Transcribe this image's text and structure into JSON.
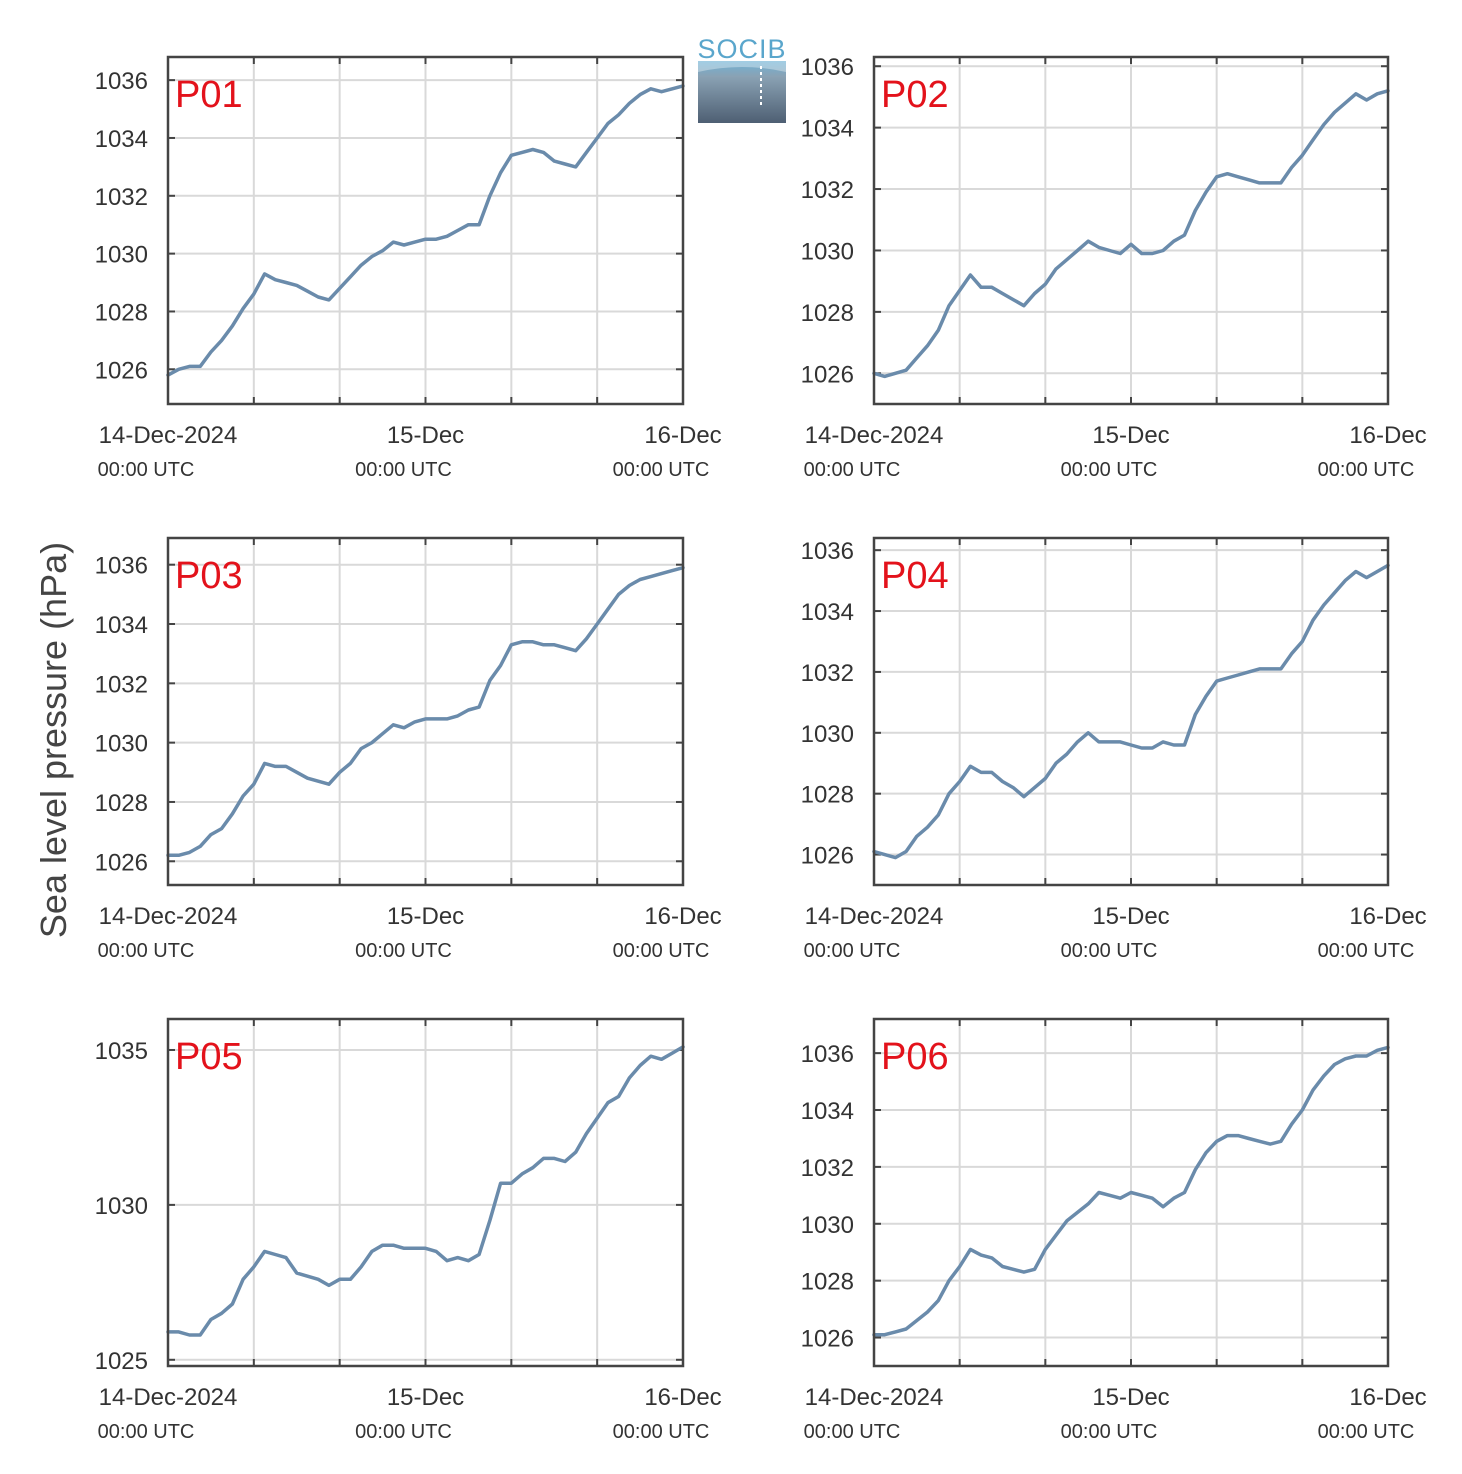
{
  "logo": {
    "text": "SOCIB"
  },
  "colors": {
    "line": "#6a8bab",
    "grid": "#d9d9d9",
    "frame": "#444444",
    "panel_label": "#e3121b"
  },
  "ylabel": "Sea level pressure (hPa)",
  "x_ticks": [
    {
      "label": "14-Dec-2024",
      "sub": "00:00 UTC"
    },
    {
      "label": "15-Dec",
      "sub": "00:00 UTC"
    },
    {
      "label": "16-Dec",
      "sub": "00:00 UTC"
    }
  ],
  "chart_data": [
    {
      "type": "line",
      "name": "P01",
      "x_unit": "hours since 14-Dec-2024 00:00 UTC",
      "xlim": [
        0,
        48
      ],
      "ylim": [
        1024.8,
        1036.8
      ],
      "yticks": [
        1026,
        1028,
        1030,
        1032,
        1034,
        1036
      ],
      "x": [
        0,
        1,
        2,
        3,
        4,
        5,
        6,
        7,
        8,
        9,
        10,
        11,
        12,
        13,
        14,
        15,
        16,
        17,
        18,
        19,
        20,
        21,
        22,
        23,
        24,
        25,
        26,
        27,
        28,
        29,
        30,
        31,
        32,
        33,
        34,
        35,
        36,
        37,
        38,
        39,
        40,
        41,
        42,
        43,
        44,
        45,
        46,
        47,
        48
      ],
      "y": [
        1025.8,
        1026.0,
        1026.1,
        1026.1,
        1026.6,
        1027.0,
        1027.5,
        1028.1,
        1028.6,
        1029.3,
        1029.1,
        1029.0,
        1028.9,
        1028.7,
        1028.5,
        1028.4,
        1028.8,
        1029.2,
        1029.6,
        1029.9,
        1030.1,
        1030.4,
        1030.3,
        1030.4,
        1030.5,
        1030.5,
        1030.6,
        1030.8,
        1031.0,
        1031.0,
        1032.0,
        1032.8,
        1033.4,
        1033.5,
        1033.6,
        1033.5,
        1033.2,
        1033.1,
        1033.0,
        1033.5,
        1034.0,
        1034.5,
        1034.8,
        1035.2,
        1035.5,
        1035.7,
        1035.6,
        1035.7,
        1035.8
      ]
    },
    {
      "type": "line",
      "name": "P02",
      "x_unit": "hours since 14-Dec-2024 00:00 UTC",
      "xlim": [
        0,
        48
      ],
      "ylim": [
        1025.0,
        1036.3
      ],
      "yticks": [
        1026,
        1028,
        1030,
        1032,
        1034,
        1036
      ],
      "x": [
        0,
        1,
        2,
        3,
        4,
        5,
        6,
        7,
        8,
        9,
        10,
        11,
        12,
        13,
        14,
        15,
        16,
        17,
        18,
        19,
        20,
        21,
        22,
        23,
        24,
        25,
        26,
        27,
        28,
        29,
        30,
        31,
        32,
        33,
        34,
        35,
        36,
        37,
        38,
        39,
        40,
        41,
        42,
        43,
        44,
        45,
        46,
        47,
        48
      ],
      "y": [
        1026.0,
        1025.9,
        1026.0,
        1026.1,
        1026.5,
        1026.9,
        1027.4,
        1028.2,
        1028.7,
        1029.2,
        1028.8,
        1028.8,
        1028.6,
        1028.4,
        1028.2,
        1028.6,
        1028.9,
        1029.4,
        1029.7,
        1030.0,
        1030.3,
        1030.1,
        1030.0,
        1029.9,
        1030.2,
        1029.9,
        1029.9,
        1030.0,
        1030.3,
        1030.5,
        1031.3,
        1031.9,
        1032.4,
        1032.5,
        1032.4,
        1032.3,
        1032.2,
        1032.2,
        1032.2,
        1032.7,
        1033.1,
        1033.6,
        1034.1,
        1034.5,
        1034.8,
        1035.1,
        1034.9,
        1035.1,
        1035.2
      ]
    },
    {
      "type": "line",
      "name": "P03",
      "x_unit": "hours since 14-Dec-2024 00:00 UTC",
      "xlim": [
        0,
        48
      ],
      "ylim": [
        1025.2,
        1036.9
      ],
      "yticks": [
        1026,
        1028,
        1030,
        1032,
        1034,
        1036
      ],
      "x": [
        0,
        1,
        2,
        3,
        4,
        5,
        6,
        7,
        8,
        9,
        10,
        11,
        12,
        13,
        14,
        15,
        16,
        17,
        18,
        19,
        20,
        21,
        22,
        23,
        24,
        25,
        26,
        27,
        28,
        29,
        30,
        31,
        32,
        33,
        34,
        35,
        36,
        37,
        38,
        39,
        40,
        41,
        42,
        43,
        44,
        45,
        46,
        47,
        48
      ],
      "y": [
        1026.2,
        1026.2,
        1026.3,
        1026.5,
        1026.9,
        1027.1,
        1027.6,
        1028.2,
        1028.6,
        1029.3,
        1029.2,
        1029.2,
        1029.0,
        1028.8,
        1028.7,
        1028.6,
        1029.0,
        1029.3,
        1029.8,
        1030.0,
        1030.3,
        1030.6,
        1030.5,
        1030.7,
        1030.8,
        1030.8,
        1030.8,
        1030.9,
        1031.1,
        1031.2,
        1032.1,
        1032.6,
        1033.3,
        1033.4,
        1033.4,
        1033.3,
        1033.3,
        1033.2,
        1033.1,
        1033.5,
        1034.0,
        1034.5,
        1035.0,
        1035.3,
        1035.5,
        1035.6,
        1035.7,
        1035.8,
        1035.9
      ]
    },
    {
      "type": "line",
      "name": "P04",
      "x_unit": "hours since 14-Dec-2024 00:00 UTC",
      "xlim": [
        0,
        48
      ],
      "ylim": [
        1025.0,
        1036.4
      ],
      "yticks": [
        1026,
        1028,
        1030,
        1032,
        1034,
        1036
      ],
      "x": [
        0,
        1,
        2,
        3,
        4,
        5,
        6,
        7,
        8,
        9,
        10,
        11,
        12,
        13,
        14,
        15,
        16,
        17,
        18,
        19,
        20,
        21,
        22,
        23,
        24,
        25,
        26,
        27,
        28,
        29,
        30,
        31,
        32,
        33,
        34,
        35,
        36,
        37,
        38,
        39,
        40,
        41,
        42,
        43,
        44,
        45,
        46,
        47,
        48
      ],
      "y": [
        1026.1,
        1026.0,
        1025.9,
        1026.1,
        1026.6,
        1026.9,
        1027.3,
        1028.0,
        1028.4,
        1028.9,
        1028.7,
        1028.7,
        1028.4,
        1028.2,
        1027.9,
        1028.2,
        1028.5,
        1029.0,
        1029.3,
        1029.7,
        1030.0,
        1029.7,
        1029.7,
        1029.7,
        1029.6,
        1029.5,
        1029.5,
        1029.7,
        1029.6,
        1029.6,
        1030.6,
        1031.2,
        1031.7,
        1031.8,
        1031.9,
        1032.0,
        1032.1,
        1032.1,
        1032.1,
        1032.6,
        1033.0,
        1033.7,
        1034.2,
        1034.6,
        1035.0,
        1035.3,
        1035.1,
        1035.3,
        1035.5
      ]
    },
    {
      "type": "line",
      "name": "P05",
      "x_unit": "hours since 14-Dec-2024 00:00 UTC",
      "xlim": [
        0,
        48
      ],
      "ylim": [
        1024.8,
        1036.0
      ],
      "yticks": [
        1025,
        1030,
        1035
      ],
      "x": [
        0,
        1,
        2,
        3,
        4,
        5,
        6,
        7,
        8,
        9,
        10,
        11,
        12,
        13,
        14,
        15,
        16,
        17,
        18,
        19,
        20,
        21,
        22,
        23,
        24,
        25,
        26,
        27,
        28,
        29,
        30,
        31,
        32,
        33,
        34,
        35,
        36,
        37,
        38,
        39,
        40,
        41,
        42,
        43,
        44,
        45,
        46,
        47,
        48
      ],
      "y": [
        1025.9,
        1025.9,
        1025.8,
        1025.8,
        1026.3,
        1026.5,
        1026.8,
        1027.6,
        1028.0,
        1028.5,
        1028.4,
        1028.3,
        1027.8,
        1027.7,
        1027.6,
        1027.4,
        1027.6,
        1027.6,
        1028.0,
        1028.5,
        1028.7,
        1028.7,
        1028.6,
        1028.6,
        1028.6,
        1028.5,
        1028.2,
        1028.3,
        1028.2,
        1028.4,
        1029.5,
        1030.7,
        1030.7,
        1031.0,
        1031.2,
        1031.5,
        1031.5,
        1031.4,
        1031.7,
        1032.3,
        1032.8,
        1033.3,
        1033.5,
        1034.1,
        1034.5,
        1034.8,
        1034.7,
        1034.9,
        1035.1
      ]
    },
    {
      "type": "line",
      "name": "P06",
      "x_unit": "hours since 14-Dec-2024 00:00 UTC",
      "xlim": [
        0,
        48
      ],
      "ylim": [
        1025.0,
        1037.2
      ],
      "yticks": [
        1026,
        1028,
        1030,
        1032,
        1034,
        1036
      ],
      "x": [
        0,
        1,
        2,
        3,
        4,
        5,
        6,
        7,
        8,
        9,
        10,
        11,
        12,
        13,
        14,
        15,
        16,
        17,
        18,
        19,
        20,
        21,
        22,
        23,
        24,
        25,
        26,
        27,
        28,
        29,
        30,
        31,
        32,
        33,
        34,
        35,
        36,
        37,
        38,
        39,
        40,
        41,
        42,
        43,
        44,
        45,
        46,
        47,
        48
      ],
      "y": [
        1026.1,
        1026.1,
        1026.2,
        1026.3,
        1026.6,
        1026.9,
        1027.3,
        1028.0,
        1028.5,
        1029.1,
        1028.9,
        1028.8,
        1028.5,
        1028.4,
        1028.3,
        1028.4,
        1029.1,
        1029.6,
        1030.1,
        1030.4,
        1030.7,
        1031.1,
        1031.0,
        1030.9,
        1031.1,
        1031.0,
        1030.9,
        1030.6,
        1030.9,
        1031.1,
        1031.9,
        1032.5,
        1032.9,
        1033.1,
        1033.1,
        1033.0,
        1032.9,
        1032.8,
        1032.9,
        1033.5,
        1034.0,
        1034.7,
        1035.2,
        1035.6,
        1035.8,
        1035.9,
        1035.9,
        1036.1,
        1036.2
      ]
    }
  ]
}
